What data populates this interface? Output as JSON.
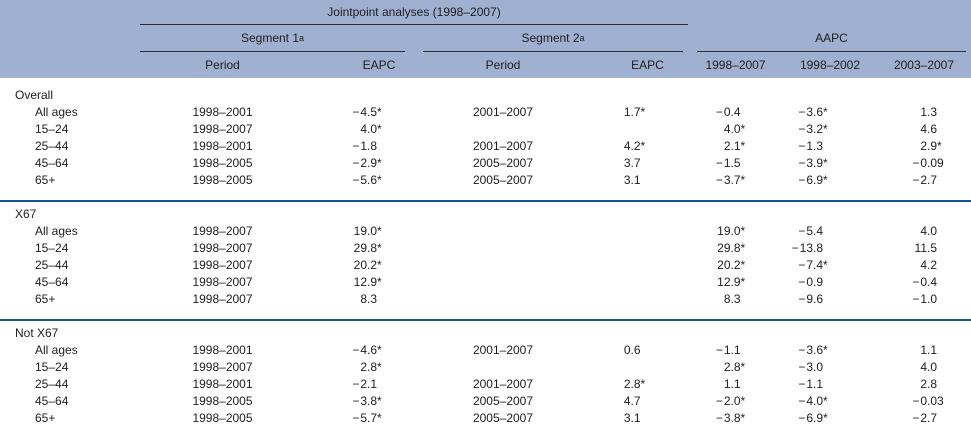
{
  "colors": {
    "header_background": "#a0b0d0",
    "group_separator_line": "#0e5796",
    "header_rule_line": "#2e2e2e",
    "text": "#1d1d1d"
  },
  "header": {
    "jointpoint_title": "Jointpoint analyses (1998–2007)",
    "groups": [
      {
        "label": "Segment 1",
        "sup": "a"
      },
      {
        "label": "Segment 2",
        "sup": "a"
      },
      {
        "label": "AAPC",
        "sup": ""
      }
    ],
    "columns": [
      "Period",
      "EAPC",
      "Period",
      "EAPC",
      "1998–2007",
      "1998–2002",
      "2003–2007"
    ]
  },
  "table": {
    "row_columns": [
      "age",
      "segment1_period",
      "segment1_eapc",
      "segment2_period",
      "segment2_eapc",
      "aapc_1998_2007",
      "aapc_1998_2002",
      "aapc_2003_2007"
    ],
    "groups": [
      {
        "label": "Overall",
        "rows": [
          [
            "All ages",
            "1998–2001",
            "−4.5*",
            "2001–2007",
            "1.7*",
            "−0.4",
            "−3.6*",
            "1.3"
          ],
          [
            "15–24",
            "1998–2007",
            "4.0*",
            "",
            "",
            "4.0*",
            "−3.2*",
            "4.6"
          ],
          [
            "25–44",
            "1998–2001",
            "−1.8",
            "2001–2007",
            "4.2*",
            "2.1*",
            "−1.3",
            "2.9*"
          ],
          [
            "45–64",
            "1998–2005",
            "−2.9*",
            "2005–2007",
            "3.7",
            "−1.5",
            "−3.9*",
            "−0.09"
          ],
          [
            "65+",
            "1998–2005",
            "−5.6*",
            "2005–2007",
            "3.1",
            "−3.7*",
            "−6.9*",
            "−2.7"
          ]
        ]
      },
      {
        "label": "X67",
        "rows": [
          [
            "All ages",
            "1998–2007",
            "19.0*",
            "",
            "",
            "19.0*",
            "−5.4",
            "4.0"
          ],
          [
            "15–24",
            "1998–2007",
            "29.8*",
            "",
            "",
            "29.8*",
            "−13.8",
            "11.5"
          ],
          [
            "25–44",
            "1998–2007",
            "20.2*",
            "",
            "",
            "20.2*",
            "−7.4*",
            "4.2"
          ],
          [
            "45–64",
            "1998–2007",
            "12.9*",
            "",
            "",
            "12.9*",
            "−0.9",
            "−0.4"
          ],
          [
            "65+",
            "1998–2007",
            "8.3",
            "",
            "",
            "8.3",
            "−9.6",
            "−1.0"
          ]
        ]
      },
      {
        "label": "Not X67",
        "rows": [
          [
            "All ages",
            "1998–2001",
            "−4.6*",
            "2001–2007",
            "0.6",
            "−1.1",
            "−3.6*",
            "1.1"
          ],
          [
            "15–24",
            "1998–2007",
            "2.8*",
            "",
            "",
            "2.8*",
            "−3.0",
            "4.0"
          ],
          [
            "25–44",
            "1998–2001",
            "−2.1",
            "2001–2007",
            "2.8*",
            "1.1",
            "−1.1",
            "2.8"
          ],
          [
            "45–64",
            "1998–2005",
            "−3.8*",
            "2005–2007",
            "4.7",
            "−2.0*",
            "−4.0*",
            "−0.03"
          ],
          [
            "65+",
            "1998–2005",
            "−5.7*",
            "2005–2007",
            "3.1",
            "−3.8*",
            "−6.9*",
            "−2.7"
          ]
        ]
      }
    ]
  }
}
